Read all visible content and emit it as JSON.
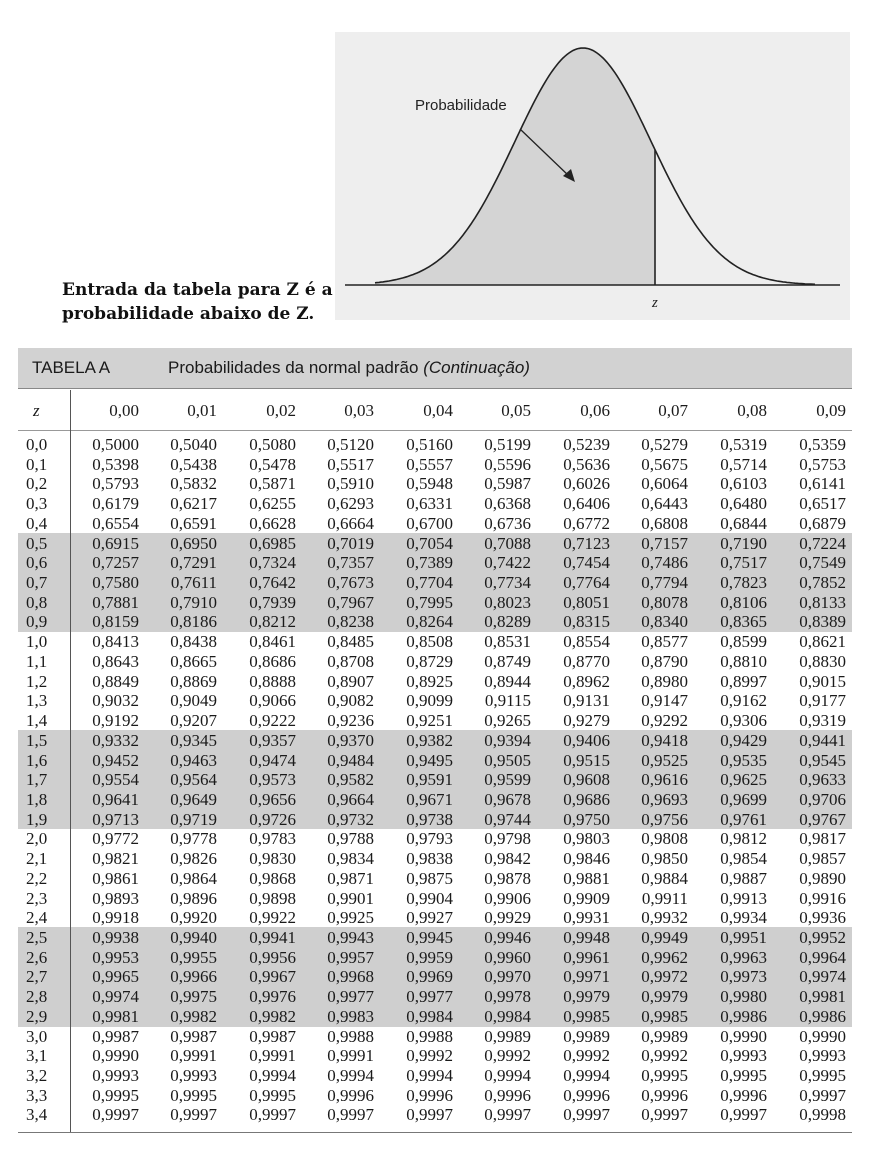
{
  "figure": {
    "prob_label": "Probabilidade",
    "z_label": "z"
  },
  "caption": {
    "line1": "Entrada da tabela para Z é a",
    "line2": "probabilidade abaixo de Z."
  },
  "table": {
    "label": "TABELA A",
    "title_main": "Probabilidades da normal padrão",
    "title_italic": "(Continuação)",
    "z_header": "z",
    "columns": [
      "0,00",
      "0,01",
      "0,02",
      "0,03",
      "0,04",
      "0,05",
      "0,06",
      "0,07",
      "0,08",
      "0,09"
    ],
    "rows": [
      {
        "z": "0,0",
        "v": [
          "0,5000",
          "0,5040",
          "0,5080",
          "0,5120",
          "0,5160",
          "0,5199",
          "0,5239",
          "0,5279",
          "0,5319",
          "0,5359"
        ]
      },
      {
        "z": "0,1",
        "v": [
          "0,5398",
          "0,5438",
          "0,5478",
          "0,5517",
          "0,5557",
          "0,5596",
          "0,5636",
          "0,5675",
          "0,5714",
          "0,5753"
        ]
      },
      {
        "z": "0,2",
        "v": [
          "0,5793",
          "0,5832",
          "0,5871",
          "0,5910",
          "0,5948",
          "0,5987",
          "0,6026",
          "0,6064",
          "0,6103",
          "0,6141"
        ]
      },
      {
        "z": "0,3",
        "v": [
          "0,6179",
          "0,6217",
          "0,6255",
          "0,6293",
          "0,6331",
          "0,6368",
          "0,6406",
          "0,6443",
          "0,6480",
          "0,6517"
        ]
      },
      {
        "z": "0,4",
        "v": [
          "0,6554",
          "0,6591",
          "0,6628",
          "0,6664",
          "0,6700",
          "0,6736",
          "0,6772",
          "0,6808",
          "0,6844",
          "0,6879"
        ]
      },
      {
        "z": "0,5",
        "v": [
          "0,6915",
          "0,6950",
          "0,6985",
          "0,7019",
          "0,7054",
          "0,7088",
          "0,7123",
          "0,7157",
          "0,7190",
          "0,7224"
        ]
      },
      {
        "z": "0,6",
        "v": [
          "0,7257",
          "0,7291",
          "0,7324",
          "0,7357",
          "0,7389",
          "0,7422",
          "0,7454",
          "0,7486",
          "0,7517",
          "0,7549"
        ]
      },
      {
        "z": "0,7",
        "v": [
          "0,7580",
          "0,7611",
          "0,7642",
          "0,7673",
          "0,7704",
          "0,7734",
          "0,7764",
          "0,7794",
          "0,7823",
          "0,7852"
        ]
      },
      {
        "z": "0,8",
        "v": [
          "0,7881",
          "0,7910",
          "0,7939",
          "0,7967",
          "0,7995",
          "0,8023",
          "0,8051",
          "0,8078",
          "0,8106",
          "0,8133"
        ]
      },
      {
        "z": "0,9",
        "v": [
          "0,8159",
          "0,8186",
          "0,8212",
          "0,8238",
          "0,8264",
          "0,8289",
          "0,8315",
          "0,8340",
          "0,8365",
          "0,8389"
        ]
      },
      {
        "z": "1,0",
        "v": [
          "0,8413",
          "0,8438",
          "0,8461",
          "0,8485",
          "0,8508",
          "0,8531",
          "0,8554",
          "0,8577",
          "0,8599",
          "0,8621"
        ]
      },
      {
        "z": "1,1",
        "v": [
          "0,8643",
          "0,8665",
          "0,8686",
          "0,8708",
          "0,8729",
          "0,8749",
          "0,8770",
          "0,8790",
          "0,8810",
          "0,8830"
        ]
      },
      {
        "z": "1,2",
        "v": [
          "0,8849",
          "0,8869",
          "0,8888",
          "0,8907",
          "0,8925",
          "0,8944",
          "0,8962",
          "0,8980",
          "0,8997",
          "0,9015"
        ]
      },
      {
        "z": "1,3",
        "v": [
          "0,9032",
          "0,9049",
          "0,9066",
          "0,9082",
          "0,9099",
          "0,9115",
          "0,9131",
          "0,9147",
          "0,9162",
          "0,9177"
        ]
      },
      {
        "z": "1,4",
        "v": [
          "0,9192",
          "0,9207",
          "0,9222",
          "0,9236",
          "0,9251",
          "0,9265",
          "0,9279",
          "0,9292",
          "0,9306",
          "0,9319"
        ]
      },
      {
        "z": "1,5",
        "v": [
          "0,9332",
          "0,9345",
          "0,9357",
          "0,9370",
          "0,9382",
          "0,9394",
          "0,9406",
          "0,9418",
          "0,9429",
          "0,9441"
        ]
      },
      {
        "z": "1,6",
        "v": [
          "0,9452",
          "0,9463",
          "0,9474",
          "0,9484",
          "0,9495",
          "0,9505",
          "0,9515",
          "0,9525",
          "0,9535",
          "0,9545"
        ]
      },
      {
        "z": "1,7",
        "v": [
          "0,9554",
          "0,9564",
          "0,9573",
          "0,9582",
          "0,9591",
          "0,9599",
          "0,9608",
          "0,9616",
          "0,9625",
          "0,9633"
        ]
      },
      {
        "z": "1,8",
        "v": [
          "0,9641",
          "0,9649",
          "0,9656",
          "0,9664",
          "0,9671",
          "0,9678",
          "0,9686",
          "0,9693",
          "0,9699",
          "0,9706"
        ]
      },
      {
        "z": "1,9",
        "v": [
          "0,9713",
          "0,9719",
          "0,9726",
          "0,9732",
          "0,9738",
          "0,9744",
          "0,9750",
          "0,9756",
          "0,9761",
          "0,9767"
        ]
      },
      {
        "z": "2,0",
        "v": [
          "0,9772",
          "0,9778",
          "0,9783",
          "0,9788",
          "0,9793",
          "0,9798",
          "0,9803",
          "0,9808",
          "0,9812",
          "0,9817"
        ]
      },
      {
        "z": "2,1",
        "v": [
          "0,9821",
          "0,9826",
          "0,9830",
          "0,9834",
          "0,9838",
          "0,9842",
          "0,9846",
          "0,9850",
          "0,9854",
          "0,9857"
        ]
      },
      {
        "z": "2,2",
        "v": [
          "0,9861",
          "0,9864",
          "0,9868",
          "0,9871",
          "0,9875",
          "0,9878",
          "0,9881",
          "0,9884",
          "0,9887",
          "0,9890"
        ]
      },
      {
        "z": "2,3",
        "v": [
          "0,9893",
          "0,9896",
          "0,9898",
          "0,9901",
          "0,9904",
          "0,9906",
          "0,9909",
          "0,9911",
          "0,9913",
          "0,9916"
        ]
      },
      {
        "z": "2,4",
        "v": [
          "0,9918",
          "0,9920",
          "0,9922",
          "0,9925",
          "0,9927",
          "0,9929",
          "0,9931",
          "0,9932",
          "0,9934",
          "0,9936"
        ]
      },
      {
        "z": "2,5",
        "v": [
          "0,9938",
          "0,9940",
          "0,9941",
          "0,9943",
          "0,9945",
          "0,9946",
          "0,9948",
          "0,9949",
          "0,9951",
          "0,9952"
        ]
      },
      {
        "z": "2,6",
        "v": [
          "0,9953",
          "0,9955",
          "0,9956",
          "0,9957",
          "0,9959",
          "0,9960",
          "0,9961",
          "0,9962",
          "0,9963",
          "0,9964"
        ]
      },
      {
        "z": "2,7",
        "v": [
          "0,9965",
          "0,9966",
          "0,9967",
          "0,9968",
          "0,9969",
          "0,9970",
          "0,9971",
          "0,9972",
          "0,9973",
          "0,9974"
        ]
      },
      {
        "z": "2,8",
        "v": [
          "0,9974",
          "0,9975",
          "0,9976",
          "0,9977",
          "0,9977",
          "0,9978",
          "0,9979",
          "0,9979",
          "0,9980",
          "0,9981"
        ]
      },
      {
        "z": "2,9",
        "v": [
          "0,9981",
          "0,9982",
          "0,9982",
          "0,9983",
          "0,9984",
          "0,9984",
          "0,9985",
          "0,9985",
          "0,9986",
          "0,9986"
        ]
      },
      {
        "z": "3,0",
        "v": [
          "0,9987",
          "0,9987",
          "0,9987",
          "0,9988",
          "0,9988",
          "0,9989",
          "0,9989",
          "0,9989",
          "0,9990",
          "0,9990"
        ]
      },
      {
        "z": "3,1",
        "v": [
          "0,9990",
          "0,9991",
          "0,9991",
          "0,9991",
          "0,9992",
          "0,9992",
          "0,9992",
          "0,9992",
          "0,9993",
          "0,9993"
        ]
      },
      {
        "z": "3,2",
        "v": [
          "0,9993",
          "0,9993",
          "0,9994",
          "0,9994",
          "0,9994",
          "0,9994",
          "0,9994",
          "0,9995",
          "0,9995",
          "0,9995"
        ]
      },
      {
        "z": "3,3",
        "v": [
          "0,9995",
          "0,9995",
          "0,9995",
          "0,9996",
          "0,9996",
          "0,9996",
          "0,9996",
          "0,9996",
          "0,9996",
          "0,9997"
        ]
      },
      {
        "z": "3,4",
        "v": [
          "0,9997",
          "0,9997",
          "0,9997",
          "0,9997",
          "0,9997",
          "0,9997",
          "0,9997",
          "0,9997",
          "0,9997",
          "0,9998"
        ]
      }
    ]
  }
}
